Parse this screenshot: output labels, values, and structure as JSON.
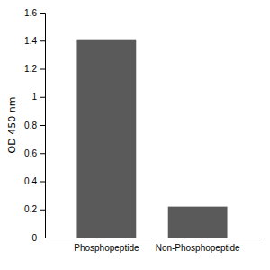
{
  "chart_data": {
    "type": "bar",
    "categories": [
      "Phosphopeptide",
      "Non-Phosphopeptide"
    ],
    "values": [
      1.41,
      0.22
    ],
    "color": "#5a5a5a",
    "ylabel": "OD 450 nm",
    "ylim": [
      0,
      1.6
    ],
    "yticks": [
      0,
      0.2,
      0.4,
      0.6,
      0.8,
      1,
      1.2,
      1.4,
      1.6
    ],
    "grid": false
  }
}
